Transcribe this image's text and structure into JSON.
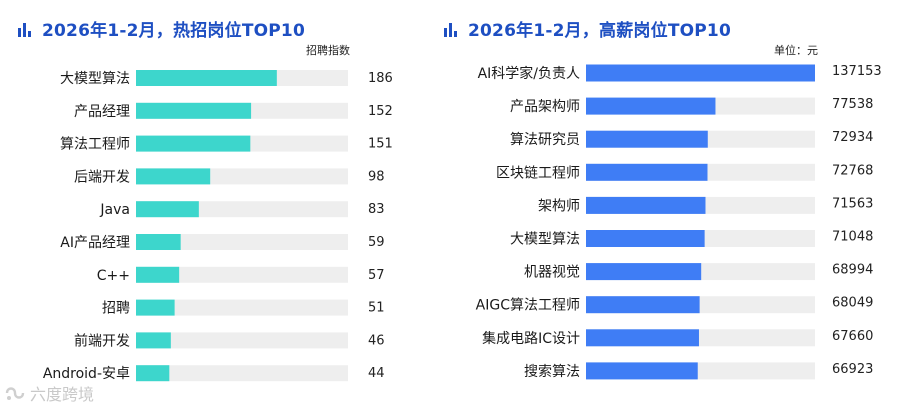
{
  "colors": {
    "title": "#1e4fc2",
    "left_bar": "#3dd6cc",
    "right_bar": "#3f7df5",
    "track": "#eeeeee"
  },
  "watermark": {
    "text": "六度跨境"
  },
  "chart_data": [
    {
      "type": "bar",
      "orientation": "horizontal",
      "title": "2026年1-2月，热招岗位TOP10",
      "unit_label": "招聘指数",
      "categories": [
        "大模型算法",
        "产品经理",
        "算法工程师",
        "后端开发",
        "Java",
        "AI产品经理",
        "C++",
        "招聘",
        "前端开发",
        "Android-安卓"
      ],
      "values": [
        186,
        152,
        151,
        98,
        83,
        59,
        57,
        51,
        46,
        44
      ],
      "xlim": [
        0,
        280
      ],
      "grid": false,
      "legend": "none"
    },
    {
      "type": "bar",
      "orientation": "horizontal",
      "title": "2026年1-2月，高薪岗位TOP10",
      "unit_label": "单位：元",
      "categories": [
        "AI科学家/负责人",
        "产品架构师",
        "算法研究员",
        "区块链工程师",
        "架构师",
        "大模型算法",
        "机器视觉",
        "AIGC算法工程师",
        "集成电路IC设计",
        "搜索算法"
      ],
      "values": [
        137153,
        77538,
        72934,
        72768,
        71563,
        71048,
        68994,
        68049,
        67660,
        66923
      ],
      "xlim": [
        0,
        137153
      ],
      "grid": false,
      "legend": "none"
    }
  ]
}
